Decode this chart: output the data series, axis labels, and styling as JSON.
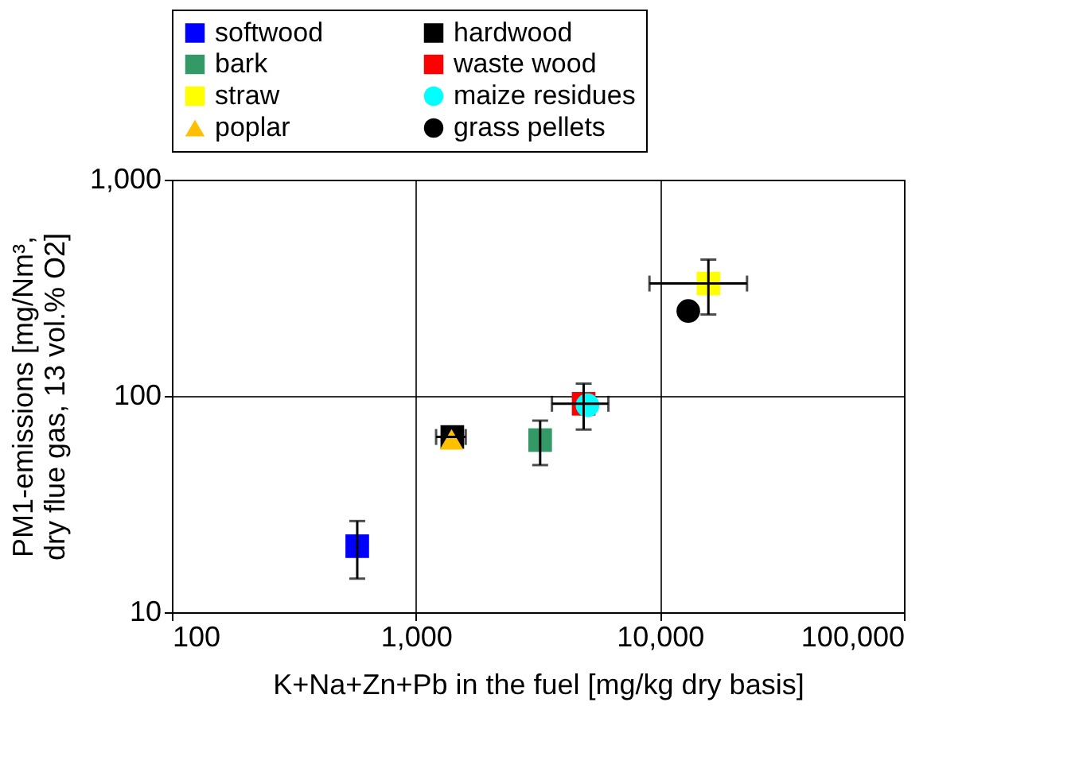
{
  "chart_data": {
    "type": "scatter",
    "xlabel": "K+Na+Zn+Pb in the fuel [mg/kg dry basis]",
    "ylabel": "PM1-emissions [mg/Nm³,\ndry flue gas, 13 vol.% O2]",
    "log": "xy",
    "grid": true,
    "legend": "top",
    "xlim": [
      100,
      100000
    ],
    "xticks": [
      100,
      {
        "value": 1000,
        "label": "1,000"
      },
      {
        "value": 10000,
        "label": "10,000"
      },
      {
        "value": 100000,
        "label": "100,000"
      }
    ],
    "ylim": [
      10,
      1000
    ],
    "yticks": [
      10,
      100,
      {
        "value": 1000,
        "label": "1,000"
      }
    ],
    "series": [
      {
        "name": "softwood",
        "color": "#0000ff",
        "marker": "square",
        "x": [
          575
        ],
        "values": [
          20.2
        ],
        "errors": [
          [
            14.3,
            26.4
          ]
        ]
      },
      {
        "name": "hardwood",
        "color": "#000000",
        "marker": "square",
        "x": [
          1410
        ],
        "values": [
          64.6
        ],
        "xerrors": [
          [
            1210,
            1600
          ]
        ]
      },
      {
        "name": "bark",
        "color": "#339966",
        "marker": "square",
        "x": [
          3230
        ],
        "values": [
          62.5
        ],
        "errors": [
          [
            47.9,
            76.9
          ]
        ]
      },
      {
        "name": "waste wood",
        "color": "#ff0000",
        "marker": "square",
        "x": [
          4870
        ],
        "values": [
          92
        ],
        "errors": [
          [
            70,
            114
          ]
        ],
        "xerrors": [
          [
            3610,
            6150
          ]
        ]
      },
      {
        "name": "straw",
        "color": "#ffff00",
        "marker": "square",
        "x": [
          15800
        ],
        "values": [
          331
        ],
        "errors": [
          [
            238,
            427
          ]
        ],
        "xerrors": [
          [
            9060,
            22750
          ]
        ]
      },
      {
        "name": "maize residues",
        "color": "#00ffff",
        "marker": "circle",
        "x": [
          5050
        ],
        "values": [
          90.6
        ]
      },
      {
        "name": "poplar",
        "color": "#ffc000",
        "marker": "triangle",
        "x": [
          1400
        ],
        "values": [
          63
        ]
      },
      {
        "name": "grass pellets",
        "color": "#000000",
        "marker": "circle",
        "x": [
          13070
        ],
        "values": [
          247
        ]
      }
    ]
  }
}
